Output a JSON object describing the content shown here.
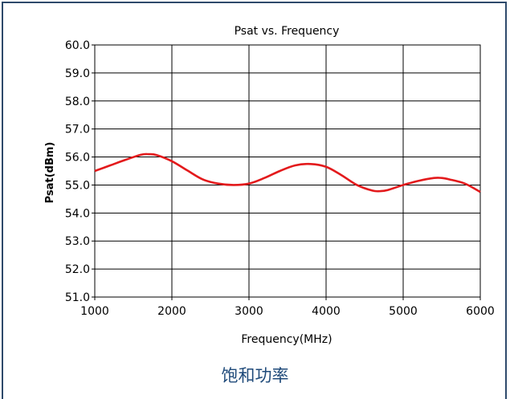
{
  "chart_data": {
    "type": "line",
    "title": "Psat vs. Frequency",
    "xlabel": "Frequency(MHz)",
    "ylabel": "Psat(dBm)",
    "xlim": [
      1000,
      6000
    ],
    "ylim": [
      51.0,
      60.0
    ],
    "x_ticks": [
      "1000",
      "2000",
      "3000",
      "4000",
      "5000",
      "6000"
    ],
    "y_ticks": [
      "51.0",
      "52.0",
      "53.0",
      "54.0",
      "55.0",
      "56.0",
      "57.0",
      "58.0",
      "59.0",
      "60.0"
    ],
    "grid": true,
    "series": [
      {
        "color": "#e31a1c",
        "x": [
          1000,
          1200,
          1400,
          1600,
          1700,
          1800,
          2000,
          2200,
          2400,
          2600,
          2800,
          3000,
          3200,
          3400,
          3600,
          3800,
          4000,
          4200,
          4400,
          4600,
          4700,
          4800,
          5000,
          5200,
          5400,
          5500,
          5600,
          5800,
          6000
        ],
        "y": [
          55.5,
          55.7,
          55.9,
          56.08,
          56.1,
          56.07,
          55.85,
          55.52,
          55.2,
          55.05,
          55.0,
          55.05,
          55.25,
          55.5,
          55.7,
          55.75,
          55.65,
          55.35,
          55.0,
          54.8,
          54.78,
          54.82,
          55.0,
          55.15,
          55.25,
          55.25,
          55.2,
          55.05,
          54.75
        ]
      }
    ]
  },
  "caption": "饱和功率",
  "colors": {
    "frame_border": "#2e4a6b",
    "caption_text": "#1f4a7a",
    "grid": "#000000"
  }
}
